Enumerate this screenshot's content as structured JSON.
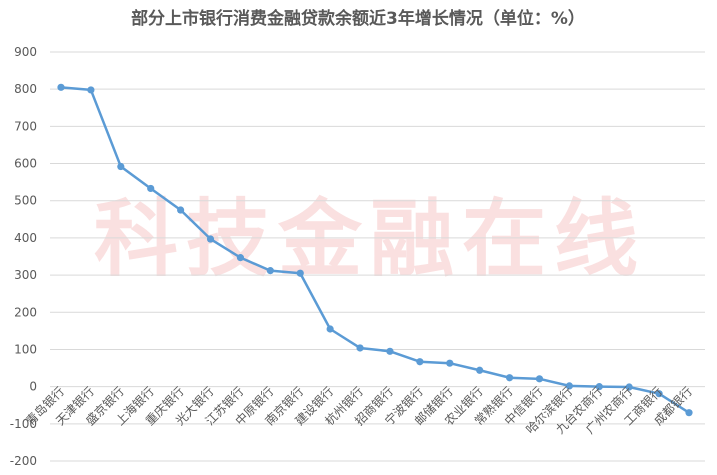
{
  "chart_data": {
    "type": "line",
    "title": "部分上市银行消费金融贷款余额近3年增长情况（单位：%）",
    "watermark": "科技金融在线",
    "categories": [
      "青岛银行",
      "天津银行",
      "盛京银行",
      "上海银行",
      "重庆银行",
      "光大银行",
      "江苏银行",
      "中原银行",
      "南京银行",
      "建设银行",
      "杭州银行",
      "招商银行",
      "宁波银行",
      "邮储银行",
      "农业银行",
      "常熟银行",
      "中信银行",
      "哈尔滨银行",
      "九台农商行",
      "广州农商行",
      "工商银行",
      "成都银行"
    ],
    "series": [
      {
        "values": [
          805,
          798,
          592,
          533,
          475,
          397,
          347,
          312,
          305,
          155,
          104,
          95,
          67,
          63,
          44,
          24,
          21,
          2,
          0,
          -1,
          -19,
          -70
        ]
      }
    ],
    "ylim": [
      -200,
      900
    ],
    "yticks": [
      -200,
      -100,
      0,
      100,
      200,
      300,
      400,
      500,
      600,
      700,
      800,
      900
    ],
    "colors": {
      "line": "#5b9bd5",
      "gridline": "#d9d9d9",
      "text": "#595959"
    },
    "grid": true,
    "legend": "none"
  }
}
